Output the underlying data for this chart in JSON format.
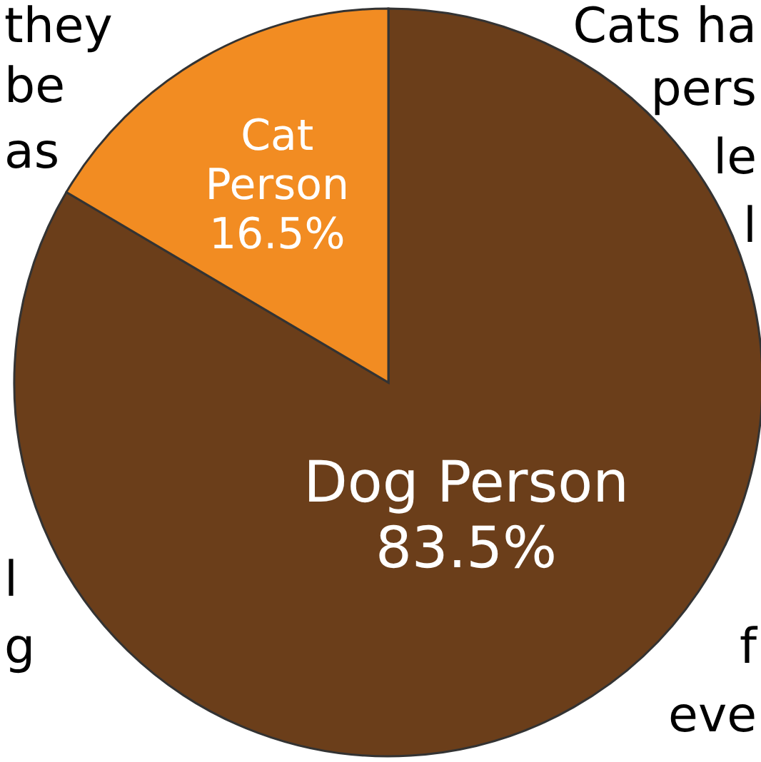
{
  "chart_data": {
    "type": "pie",
    "categories": [
      "Dog Person",
      "Cat Person"
    ],
    "values": [
      83.5,
      16.5
    ],
    "colors": [
      "#6b3e1a",
      "#f28c22"
    ],
    "value_labels": [
      "83.5%",
      "16.5%"
    ],
    "annotations": [
      "they",
      "be",
      "as",
      "Cats ha",
      "pers",
      "le",
      "l",
      "l",
      "g",
      "f",
      "eve"
    ]
  }
}
